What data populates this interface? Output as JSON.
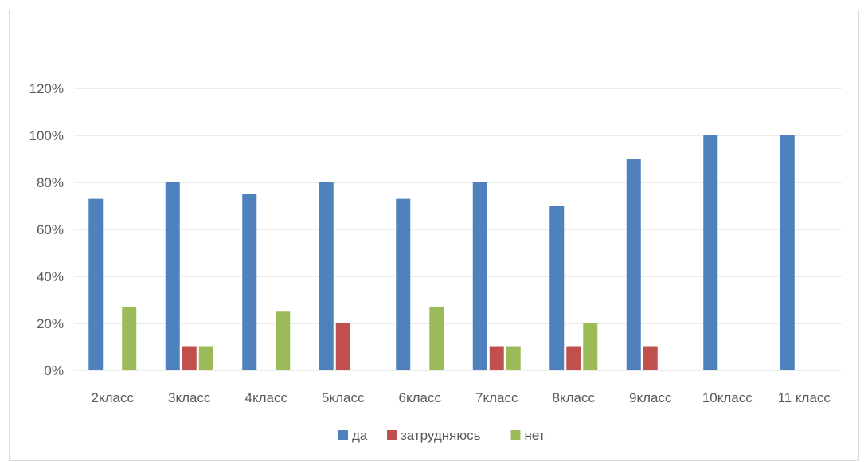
{
  "chart_data": {
    "type": "bar",
    "categories": [
      "2класс",
      "3класс",
      "4класс",
      "5класс",
      "6класс",
      "7класс",
      "8класс",
      "9класс",
      "10класс",
      "11 класс"
    ],
    "series": [
      {
        "name": "да",
        "color": "#4f81bd",
        "values": [
          73,
          80,
          75,
          80,
          73,
          80,
          70,
          90,
          100,
          100
        ]
      },
      {
        "name": "затрудняюсь",
        "color": "#c0504d",
        "values": [
          0,
          10,
          0,
          20,
          0,
          10,
          10,
          10,
          0,
          0
        ]
      },
      {
        "name": "нет",
        "color": "#9bbb59",
        "values": [
          27,
          10,
          25,
          0,
          27,
          10,
          20,
          0,
          0,
          0
        ]
      }
    ],
    "ylim": [
      0,
      120
    ],
    "yticks": [
      "0%",
      "20%",
      "40%",
      "60%",
      "80%",
      "100%",
      "120%"
    ],
    "grid": true,
    "legend": "bottom"
  }
}
